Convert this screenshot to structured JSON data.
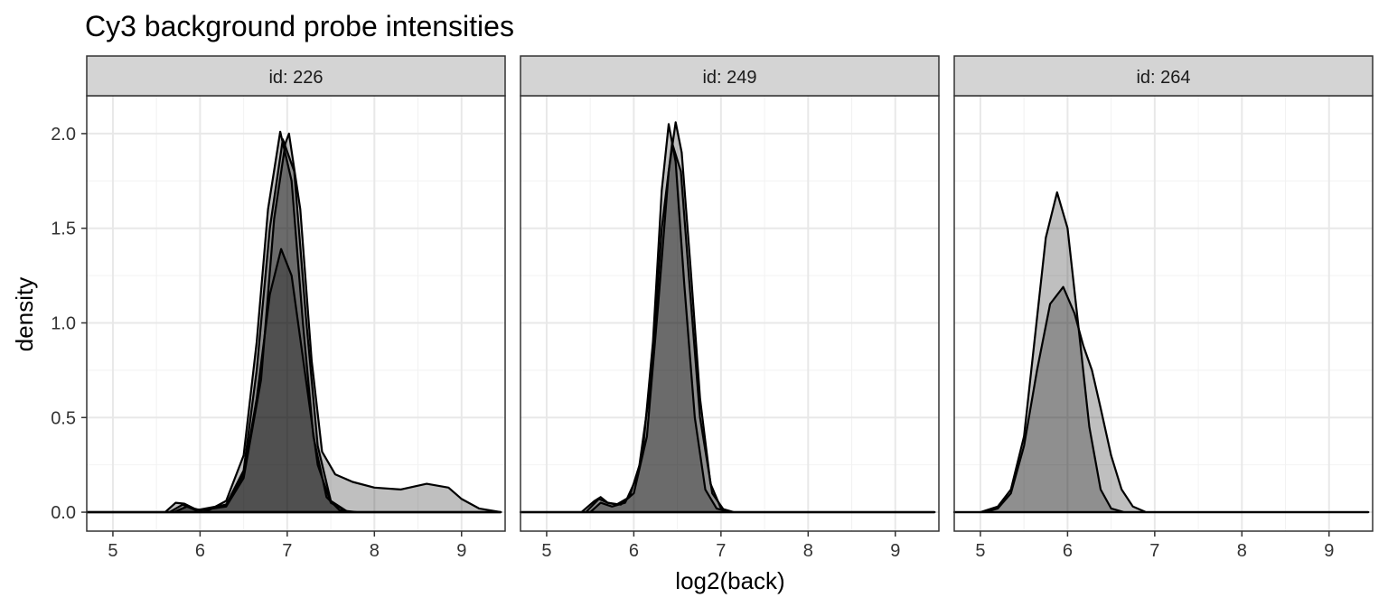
{
  "chart_data": {
    "type": "area",
    "title": "Cy3 background probe intensities",
    "xlabel": "log2(back)",
    "ylabel": "density",
    "xlim": [
      4.7,
      9.5
    ],
    "ylim": [
      -0.1,
      2.2
    ],
    "x_ticks": [
      5,
      6,
      7,
      8,
      9
    ],
    "y_ticks": [
      "0.0",
      "0.5",
      "1.0",
      "1.5",
      "2.0"
    ],
    "grid": true,
    "colors": {
      "fill": "#000000",
      "line": "#000000",
      "strip_bg": "#d4d4d4",
      "grid_major": "#e8e8e8",
      "grid_minor": "#f2f2f2"
    },
    "panels": [
      {
        "label": "id: 226",
        "series": [
          {
            "peak": 2.01,
            "points": [
              [
                4.7,
                0
              ],
              [
                5.6,
                0
              ],
              [
                5.72,
                0.05
              ],
              [
                5.82,
                0.045
              ],
              [
                5.95,
                0.015
              ],
              [
                6.1,
                0.01
              ],
              [
                6.3,
                0.06
              ],
              [
                6.5,
                0.3
              ],
              [
                6.65,
                0.9
              ],
              [
                6.78,
                1.6
              ],
              [
                6.92,
                2.01
              ],
              [
                7.05,
                1.75
              ],
              [
                7.18,
                1.0
              ],
              [
                7.3,
                0.4
              ],
              [
                7.45,
                0.08
              ],
              [
                7.6,
                0.01
              ],
              [
                7.8,
                0
              ],
              [
                9.45,
                0
              ]
            ]
          },
          {
            "peak": 1.97,
            "points": [
              [
                4.7,
                0
              ],
              [
                5.65,
                0
              ],
              [
                5.8,
                0.04
              ],
              [
                5.95,
                0.01
              ],
              [
                6.3,
                0.04
              ],
              [
                6.5,
                0.22
              ],
              [
                6.65,
                0.75
              ],
              [
                6.8,
                1.5
              ],
              [
                6.95,
                1.97
              ],
              [
                7.08,
                1.8
              ],
              [
                7.22,
                1.0
              ],
              [
                7.35,
                0.35
              ],
              [
                7.5,
                0.06
              ],
              [
                7.7,
                0
              ],
              [
                9.45,
                0
              ]
            ]
          },
          {
            "peak": 2.0,
            "points": [
              [
                4.7,
                0
              ],
              [
                5.7,
                0
              ],
              [
                5.85,
                0.03
              ],
              [
                6.0,
                0.01
              ],
              [
                6.3,
                0.03
              ],
              [
                6.5,
                0.18
              ],
              [
                6.7,
                0.7
              ],
              [
                6.85,
                1.55
              ],
              [
                6.98,
                1.95
              ],
              [
                7.02,
                2.0
              ],
              [
                7.15,
                1.6
              ],
              [
                7.28,
                0.8
              ],
              [
                7.4,
                0.32
              ],
              [
                7.55,
                0.2
              ],
              [
                7.75,
                0.16
              ],
              [
                8.0,
                0.13
              ],
              [
                8.3,
                0.12
              ],
              [
                8.6,
                0.15
              ],
              [
                8.85,
                0.13
              ],
              [
                9.0,
                0.07
              ],
              [
                9.2,
                0.02
              ],
              [
                9.45,
                0
              ]
            ]
          },
          {
            "peak": 1.39,
            "points": [
              [
                4.7,
                0
              ],
              [
                5.7,
                0
              ],
              [
                5.85,
                0.03
              ],
              [
                6.0,
                0.01
              ],
              [
                6.3,
                0.04
              ],
              [
                6.5,
                0.2
              ],
              [
                6.65,
                0.6
              ],
              [
                6.8,
                1.15
              ],
              [
                6.93,
                1.39
              ],
              [
                7.05,
                1.25
              ],
              [
                7.2,
                0.75
              ],
              [
                7.35,
                0.25
              ],
              [
                7.5,
                0.05
              ],
              [
                7.7,
                0
              ],
              [
                9.45,
                0
              ]
            ]
          }
        ]
      },
      {
        "label": "id: 249",
        "series": [
          {
            "peak": 2.05,
            "points": [
              [
                4.7,
                0
              ],
              [
                5.4,
                0
              ],
              [
                5.55,
                0.06
              ],
              [
                5.62,
                0.08
              ],
              [
                5.7,
                0.05
              ],
              [
                5.8,
                0.04
              ],
              [
                5.95,
                0.08
              ],
              [
                6.1,
                0.3
              ],
              [
                6.22,
                0.9
              ],
              [
                6.32,
                1.7
              ],
              [
                6.4,
                2.05
              ],
              [
                6.48,
                1.85
              ],
              [
                6.58,
                1.2
              ],
              [
                6.7,
                0.5
              ],
              [
                6.82,
                0.12
              ],
              [
                6.95,
                0.02
              ],
              [
                7.1,
                0
              ],
              [
                9.45,
                0
              ]
            ]
          },
          {
            "peak": 2.06,
            "points": [
              [
                4.7,
                0
              ],
              [
                5.45,
                0
              ],
              [
                5.6,
                0.07
              ],
              [
                5.7,
                0.05
              ],
              [
                5.85,
                0.04
              ],
              [
                6.0,
                0.1
              ],
              [
                6.15,
                0.4
              ],
              [
                6.28,
                1.1
              ],
              [
                6.4,
                1.8
              ],
              [
                6.48,
                2.06
              ],
              [
                6.55,
                1.9
              ],
              [
                6.65,
                1.3
              ],
              [
                6.76,
                0.6
              ],
              [
                6.88,
                0.15
              ],
              [
                7.0,
                0.02
              ],
              [
                7.15,
                0
              ],
              [
                9.45,
                0
              ]
            ]
          },
          {
            "peak": 1.95,
            "points": [
              [
                4.7,
                0
              ],
              [
                5.5,
                0
              ],
              [
                5.62,
                0.05
              ],
              [
                5.75,
                0.03
              ],
              [
                5.9,
                0.05
              ],
              [
                6.05,
                0.2
              ],
              [
                6.2,
                0.7
              ],
              [
                6.32,
                1.5
              ],
              [
                6.44,
                1.95
              ],
              [
                6.54,
                1.8
              ],
              [
                6.64,
                1.2
              ],
              [
                6.76,
                0.5
              ],
              [
                6.9,
                0.1
              ],
              [
                7.05,
                0
              ],
              [
                9.45,
                0
              ]
            ]
          }
        ]
      },
      {
        "label": "id: 264",
        "series": [
          {
            "peak": 1.69,
            "points": [
              [
                4.7,
                0
              ],
              [
                5.0,
                0
              ],
              [
                5.2,
                0.03
              ],
              [
                5.35,
                0.12
              ],
              [
                5.5,
                0.4
              ],
              [
                5.62,
                0.9
              ],
              [
                5.75,
                1.45
              ],
              [
                5.88,
                1.69
              ],
              [
                6.0,
                1.5
              ],
              [
                6.12,
                1.0
              ],
              [
                6.25,
                0.45
              ],
              [
                6.38,
                0.12
              ],
              [
                6.5,
                0.02
              ],
              [
                6.65,
                0
              ],
              [
                9.45,
                0
              ]
            ]
          },
          {
            "peak": 1.19,
            "points": [
              [
                4.7,
                0
              ],
              [
                5.05,
                0
              ],
              [
                5.2,
                0.02
              ],
              [
                5.35,
                0.1
              ],
              [
                5.5,
                0.35
              ],
              [
                5.65,
                0.75
              ],
              [
                5.8,
                1.1
              ],
              [
                5.95,
                1.19
              ],
              [
                6.08,
                1.05
              ],
              [
                6.18,
                0.88
              ],
              [
                6.28,
                0.75
              ],
              [
                6.38,
                0.55
              ],
              [
                6.5,
                0.3
              ],
              [
                6.62,
                0.12
              ],
              [
                6.75,
                0.03
              ],
              [
                6.9,
                0
              ],
              [
                9.45,
                0
              ]
            ]
          }
        ]
      }
    ]
  }
}
